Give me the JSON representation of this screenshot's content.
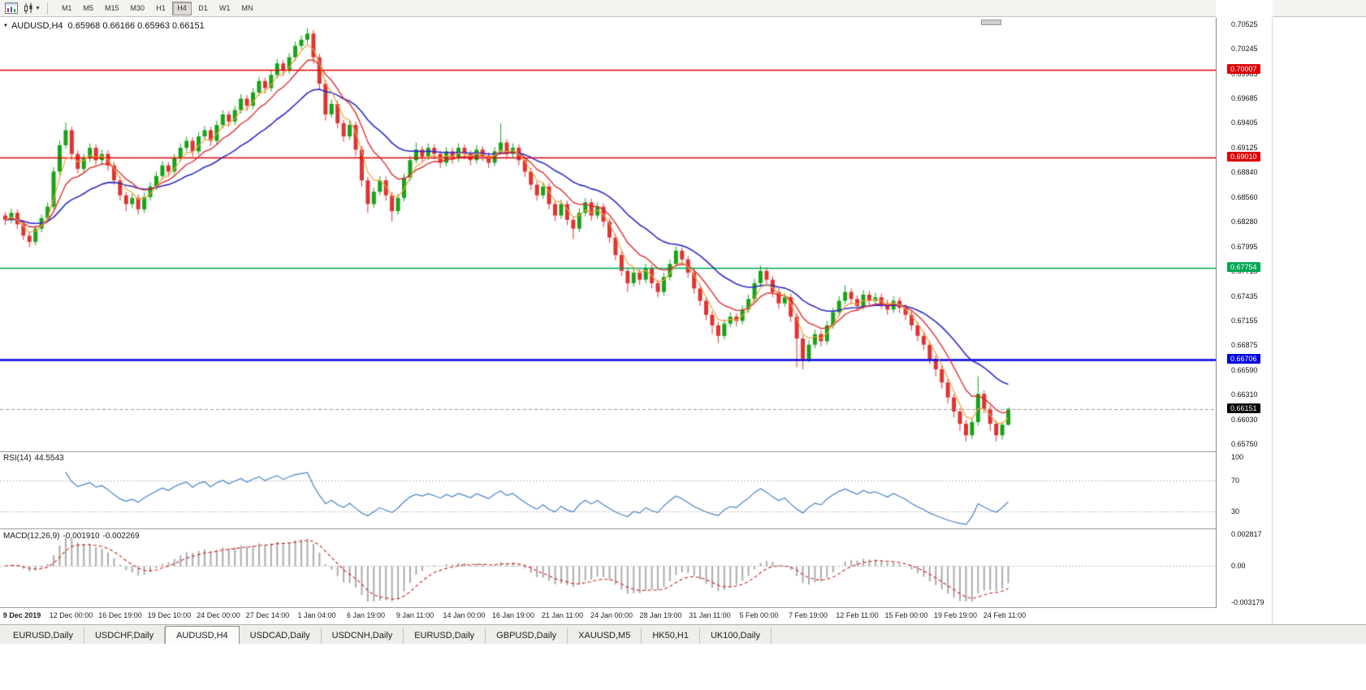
{
  "toolbar": {
    "timeframes": [
      "M1",
      "M5",
      "M15",
      "M30",
      "H1",
      "H4",
      "D1",
      "W1",
      "MN"
    ],
    "active_timeframe": "H4"
  },
  "chart": {
    "title_symbol": "AUDUSD,H4",
    "title_ohlc": "0.65968 0.66166 0.65963 0.66151"
  },
  "price_axis": {
    "ticks": [
      "0.70525",
      "0.70245",
      "0.69965",
      "0.69685",
      "0.69405",
      "0.69125",
      "0.68840",
      "0.68560",
      "0.68280",
      "0.67995",
      "0.67715",
      "0.67435",
      "0.67155",
      "0.66875",
      "0.66590",
      "0.66310",
      "0.66030",
      "0.65750"
    ]
  },
  "hlines": [
    {
      "price": "0.70007",
      "color": "#DD0000",
      "thickness": 1.4
    },
    {
      "price": "0.69010",
      "color": "#DD0000",
      "thickness": 1.4
    },
    {
      "price": "0.67754",
      "color": "#00A651",
      "thickness": 1.4
    },
    {
      "price": "0.66706",
      "color": "#0000DD",
      "thickness": 2.4
    }
  ],
  "current_price": {
    "value": "0.66151",
    "bg": "#000000"
  },
  "rsi": {
    "label": "RSI(14)",
    "value": "44.5543",
    "levels": [
      "100",
      "70",
      "30"
    ],
    "color": "#4782C6"
  },
  "macd": {
    "label": "MACD(12,26,9)",
    "value_main": "-0.001910",
    "value_signal": "-0.002269",
    "axis": [
      "0.002817",
      "0.00",
      "-0.003179"
    ],
    "hist_color": "#ABABAB",
    "signal_color": "#CC2222"
  },
  "time_axis": [
    "9 Dec 2019",
    "12 Dec 00:00",
    "16 Dec 19:00",
    "19 Dec 10:00",
    "24 Dec 00:00",
    "27 Dec 14:00",
    "1 Jan 04:00",
    "6 Jan 19:00",
    "9 Jan 11:00",
    "14 Jan 00:00",
    "16 Jan 19:00",
    "21 Jan 11:00",
    "24 Jan 00:00",
    "28 Jan 19:00",
    "31 Jan 11:00",
    "5 Feb 00:00",
    "7 Feb 19:00",
    "12 Feb 11:00",
    "15 Feb 00:00",
    "19 Feb 19:00",
    "24 Feb 11:00"
  ],
  "tabs": [
    "EURUSD,Daily",
    "USDCHF,Daily",
    "AUDUSD,H4",
    "USDCAD,Daily",
    "USDCNH,Daily",
    "EURUSD,Daily",
    "GBPUSD,Daily",
    "XAUUSD,M5",
    "HK50,H1",
    "UK100,Daily"
  ],
  "active_tab_index": 2,
  "chart_data": {
    "type": "candlestick",
    "symbol": "AUDUSD",
    "timeframe": "H4",
    "y_range": [
      0.6575,
      0.70525
    ],
    "up_color": "#17A317",
    "down_color": "#E03232",
    "ma_colors": {
      "slow": "#2B2BC8",
      "mid": "#DD2222",
      "fast": "#F0A23C"
    },
    "ohlc": [
      [
        0.6835,
        0.6839,
        0.6824,
        0.683
      ],
      [
        0.683,
        0.6843,
        0.6826,
        0.6838
      ],
      [
        0.6838,
        0.6842,
        0.682,
        0.6825
      ],
      [
        0.6825,
        0.6829,
        0.6807,
        0.6812
      ],
      [
        0.6812,
        0.6816,
        0.6799,
        0.6805
      ],
      [
        0.6805,
        0.6824,
        0.6801,
        0.682
      ],
      [
        0.682,
        0.6836,
        0.6816,
        0.6832
      ],
      [
        0.6832,
        0.685,
        0.6828,
        0.6845
      ],
      [
        0.6845,
        0.689,
        0.6842,
        0.6885
      ],
      [
        0.6885,
        0.692,
        0.6881,
        0.6915
      ],
      [
        0.6915,
        0.6941,
        0.6911,
        0.6932
      ],
      [
        0.6932,
        0.6936,
        0.6898,
        0.6905
      ],
      [
        0.6905,
        0.6909,
        0.6883,
        0.6888
      ],
      [
        0.6888,
        0.6905,
        0.6884,
        0.69
      ],
      [
        0.69,
        0.6917,
        0.6896,
        0.6912
      ],
      [
        0.6912,
        0.6916,
        0.6892,
        0.6898
      ],
      [
        0.6898,
        0.691,
        0.6893,
        0.6905
      ],
      [
        0.6905,
        0.6909,
        0.6886,
        0.6892
      ],
      [
        0.6892,
        0.6896,
        0.687,
        0.6875
      ],
      [
        0.6875,
        0.6879,
        0.6852,
        0.6858
      ],
      [
        0.6858,
        0.6862,
        0.684,
        0.6848
      ],
      [
        0.6848,
        0.686,
        0.6843,
        0.6855
      ],
      [
        0.6855,
        0.6859,
        0.6836,
        0.6842
      ],
      [
        0.6842,
        0.6861,
        0.6838,
        0.6856
      ],
      [
        0.6856,
        0.6873,
        0.6852,
        0.6868
      ],
      [
        0.6868,
        0.6885,
        0.6864,
        0.688
      ],
      [
        0.688,
        0.6897,
        0.6876,
        0.6892
      ],
      [
        0.6892,
        0.6896,
        0.6879,
        0.6885
      ],
      [
        0.6885,
        0.6905,
        0.6881,
        0.69
      ],
      [
        0.69,
        0.6917,
        0.6896,
        0.6912
      ],
      [
        0.6912,
        0.6925,
        0.6908,
        0.692
      ],
      [
        0.692,
        0.6924,
        0.6902,
        0.6908
      ],
      [
        0.6908,
        0.693,
        0.6904,
        0.6925
      ],
      [
        0.6925,
        0.6937,
        0.6921,
        0.6932
      ],
      [
        0.6932,
        0.6936,
        0.6914,
        0.692
      ],
      [
        0.692,
        0.6943,
        0.6916,
        0.6938
      ],
      [
        0.6938,
        0.6955,
        0.6934,
        0.695
      ],
      [
        0.695,
        0.6954,
        0.6936,
        0.6942
      ],
      [
        0.6942,
        0.696,
        0.6938,
        0.6955
      ],
      [
        0.6955,
        0.6973,
        0.6951,
        0.6968
      ],
      [
        0.6968,
        0.6972,
        0.6954,
        0.696
      ],
      [
        0.696,
        0.698,
        0.6956,
        0.6975
      ],
      [
        0.6975,
        0.6993,
        0.6971,
        0.6988
      ],
      [
        0.6988,
        0.6992,
        0.6974,
        0.698
      ],
      [
        0.698,
        0.7,
        0.6976,
        0.6995
      ],
      [
        0.6995,
        0.7013,
        0.6991,
        0.7008
      ],
      [
        0.7008,
        0.7012,
        0.6994,
        0.7
      ],
      [
        0.7,
        0.702,
        0.6996,
        0.7015
      ],
      [
        0.7015,
        0.7033,
        0.7011,
        0.7028
      ],
      [
        0.7028,
        0.704,
        0.7024,
        0.7035
      ],
      [
        0.7035,
        0.7048,
        0.7031,
        0.7042
      ],
      [
        0.7042,
        0.7046,
        0.7008,
        0.7015
      ],
      [
        0.7015,
        0.7019,
        0.6978,
        0.6985
      ],
      [
        0.6985,
        0.6989,
        0.6943,
        0.695
      ],
      [
        0.695,
        0.6967,
        0.6946,
        0.6962
      ],
      [
        0.6962,
        0.6966,
        0.6934,
        0.694
      ],
      [
        0.694,
        0.6944,
        0.6919,
        0.6925
      ],
      [
        0.6925,
        0.6943,
        0.6921,
        0.6938
      ],
      [
        0.6938,
        0.6942,
        0.6903,
        0.691
      ],
      [
        0.691,
        0.6914,
        0.6868,
        0.6875
      ],
      [
        0.6875,
        0.6879,
        0.6838,
        0.6848
      ],
      [
        0.6848,
        0.6867,
        0.6844,
        0.6862
      ],
      [
        0.6862,
        0.688,
        0.6858,
        0.6875
      ],
      [
        0.6875,
        0.6879,
        0.6852,
        0.6858
      ],
      [
        0.6858,
        0.6862,
        0.6828,
        0.684
      ],
      [
        0.684,
        0.686,
        0.6836,
        0.6855
      ],
      [
        0.6855,
        0.6883,
        0.6851,
        0.6878
      ],
      [
        0.6878,
        0.6903,
        0.6874,
        0.6898
      ],
      [
        0.6898,
        0.6918,
        0.6894,
        0.691
      ],
      [
        0.691,
        0.6914,
        0.6896,
        0.6902
      ],
      [
        0.6902,
        0.6917,
        0.6898,
        0.6912
      ],
      [
        0.6912,
        0.6916,
        0.6899,
        0.6905
      ],
      [
        0.6905,
        0.6909,
        0.6889,
        0.6895
      ],
      [
        0.6895,
        0.6913,
        0.6891,
        0.6908
      ],
      [
        0.6908,
        0.6912,
        0.6894,
        0.69
      ],
      [
        0.69,
        0.6917,
        0.6896,
        0.6912
      ],
      [
        0.6912,
        0.6916,
        0.6899,
        0.6905
      ],
      [
        0.6905,
        0.6909,
        0.6892,
        0.6898
      ],
      [
        0.6898,
        0.6915,
        0.6894,
        0.691
      ],
      [
        0.691,
        0.6914,
        0.6897,
        0.6903
      ],
      [
        0.6903,
        0.6907,
        0.6889,
        0.6895
      ],
      [
        0.6895,
        0.6913,
        0.6891,
        0.6908
      ],
      [
        0.6908,
        0.694,
        0.6904,
        0.6918
      ],
      [
        0.6918,
        0.6922,
        0.6899,
        0.6905
      ],
      [
        0.6905,
        0.6917,
        0.6901,
        0.6912
      ],
      [
        0.6912,
        0.6916,
        0.6892,
        0.6898
      ],
      [
        0.6898,
        0.6902,
        0.6879,
        0.6885
      ],
      [
        0.6885,
        0.6889,
        0.6864,
        0.687
      ],
      [
        0.687,
        0.6874,
        0.6852,
        0.6858
      ],
      [
        0.6858,
        0.6873,
        0.6854,
        0.6868
      ],
      [
        0.6868,
        0.6872,
        0.6842,
        0.6848
      ],
      [
        0.6848,
        0.6852,
        0.6829,
        0.6835
      ],
      [
        0.6835,
        0.6853,
        0.6831,
        0.6848
      ],
      [
        0.6848,
        0.6852,
        0.6824,
        0.683
      ],
      [
        0.683,
        0.6834,
        0.6808,
        0.682
      ],
      [
        0.682,
        0.6843,
        0.6816,
        0.6838
      ],
      [
        0.6838,
        0.6855,
        0.6834,
        0.685
      ],
      [
        0.685,
        0.6854,
        0.6829,
        0.6835
      ],
      [
        0.6835,
        0.685,
        0.6831,
        0.6845
      ],
      [
        0.6845,
        0.6849,
        0.6822,
        0.6828
      ],
      [
        0.6828,
        0.6832,
        0.6804,
        0.681
      ],
      [
        0.681,
        0.6814,
        0.6784,
        0.679
      ],
      [
        0.679,
        0.6794,
        0.6766,
        0.6772
      ],
      [
        0.6772,
        0.6776,
        0.6748,
        0.6758
      ],
      [
        0.6758,
        0.6775,
        0.6754,
        0.677
      ],
      [
        0.677,
        0.6774,
        0.6756,
        0.6762
      ],
      [
        0.6762,
        0.678,
        0.6758,
        0.6775
      ],
      [
        0.6775,
        0.6779,
        0.6752,
        0.6758
      ],
      [
        0.6758,
        0.6762,
        0.6742,
        0.6748
      ],
      [
        0.6748,
        0.677,
        0.6744,
        0.6765
      ],
      [
        0.6765,
        0.6785,
        0.6761,
        0.678
      ],
      [
        0.678,
        0.68,
        0.6776,
        0.6795
      ],
      [
        0.6795,
        0.6799,
        0.6779,
        0.6785
      ],
      [
        0.6785,
        0.6789,
        0.6764,
        0.677
      ],
      [
        0.677,
        0.6774,
        0.6746,
        0.6752
      ],
      [
        0.6752,
        0.6756,
        0.6732,
        0.6738
      ],
      [
        0.6738,
        0.6742,
        0.6716,
        0.6722
      ],
      [
        0.6722,
        0.6726,
        0.67,
        0.671
      ],
      [
        0.671,
        0.6714,
        0.669,
        0.6698
      ],
      [
        0.6698,
        0.6717,
        0.6694,
        0.6712
      ],
      [
        0.6712,
        0.6725,
        0.6708,
        0.672
      ],
      [
        0.672,
        0.6724,
        0.6709,
        0.6715
      ],
      [
        0.6715,
        0.6733,
        0.6711,
        0.6728
      ],
      [
        0.6728,
        0.6745,
        0.6724,
        0.674
      ],
      [
        0.674,
        0.6763,
        0.6736,
        0.6758
      ],
      [
        0.6758,
        0.6778,
        0.6754,
        0.6772
      ],
      [
        0.6772,
        0.6776,
        0.6756,
        0.6762
      ],
      [
        0.6762,
        0.6766,
        0.6742,
        0.6748
      ],
      [
        0.6748,
        0.6752,
        0.6729,
        0.6735
      ],
      [
        0.6735,
        0.6747,
        0.6731,
        0.6742
      ],
      [
        0.6742,
        0.6746,
        0.6714,
        0.672
      ],
      [
        0.672,
        0.6724,
        0.6662,
        0.6695
      ],
      [
        0.6695,
        0.6699,
        0.666,
        0.6672
      ],
      [
        0.6672,
        0.6693,
        0.6668,
        0.6688
      ],
      [
        0.6688,
        0.6705,
        0.6684,
        0.67
      ],
      [
        0.67,
        0.6704,
        0.6686,
        0.6692
      ],
      [
        0.6692,
        0.6715,
        0.6688,
        0.671
      ],
      [
        0.671,
        0.673,
        0.6706,
        0.6725
      ],
      [
        0.6725,
        0.6743,
        0.6721,
        0.6738
      ],
      [
        0.6738,
        0.6756,
        0.6734,
        0.6748
      ],
      [
        0.6748,
        0.6752,
        0.6734,
        0.674
      ],
      [
        0.674,
        0.6744,
        0.6726,
        0.6732
      ],
      [
        0.6732,
        0.675,
        0.6728,
        0.6745
      ],
      [
        0.6745,
        0.6749,
        0.6732,
        0.6738
      ],
      [
        0.6738,
        0.6747,
        0.6734,
        0.6742
      ],
      [
        0.6742,
        0.6746,
        0.6729,
        0.6735
      ],
      [
        0.6735,
        0.6739,
        0.6722,
        0.6728
      ],
      [
        0.6728,
        0.6743,
        0.6724,
        0.6738
      ],
      [
        0.6738,
        0.6742,
        0.6724,
        0.673
      ],
      [
        0.673,
        0.6734,
        0.6716,
        0.6722
      ],
      [
        0.6722,
        0.6726,
        0.6704,
        0.671
      ],
      [
        0.671,
        0.6714,
        0.6692,
        0.6698
      ],
      [
        0.6698,
        0.6702,
        0.6682,
        0.6688
      ],
      [
        0.6688,
        0.6692,
        0.6666,
        0.6672
      ],
      [
        0.6672,
        0.6676,
        0.6652,
        0.666
      ],
      [
        0.666,
        0.6664,
        0.6638,
        0.6645
      ],
      [
        0.6645,
        0.6649,
        0.6621,
        0.6628
      ],
      [
        0.6628,
        0.6632,
        0.6605,
        0.6612
      ],
      [
        0.6612,
        0.6616,
        0.659,
        0.6598
      ],
      [
        0.6598,
        0.6602,
        0.6578,
        0.6585
      ],
      [
        0.6585,
        0.6605,
        0.6581,
        0.66
      ],
      [
        0.66,
        0.6652,
        0.6596,
        0.6632
      ],
      [
        0.6632,
        0.6636,
        0.661,
        0.6615
      ],
      [
        0.6615,
        0.6619,
        0.659,
        0.6598
      ],
      [
        0.6598,
        0.6602,
        0.6578,
        0.6585
      ],
      [
        0.6585,
        0.66,
        0.658,
        0.6597
      ],
      [
        0.65968,
        0.66166,
        0.65963,
        0.66151
      ]
    ]
  }
}
